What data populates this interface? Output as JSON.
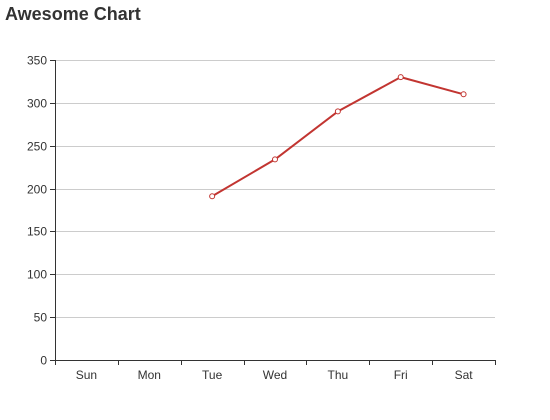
{
  "chart_data": {
    "type": "line",
    "title": "Awesome Chart",
    "categories": [
      "Sun",
      "Mon",
      "Tue",
      "Wed",
      "Thu",
      "Fri",
      "Sat"
    ],
    "series": [
      {
        "values": [
          null,
          null,
          191,
          234,
          290,
          330,
          310
        ],
        "color": "#c23531"
      }
    ],
    "ylim": [
      0,
      350
    ],
    "yticks": [
      0,
      50,
      100,
      150,
      200,
      250,
      300,
      350
    ],
    "grid": true,
    "legend": "none"
  }
}
